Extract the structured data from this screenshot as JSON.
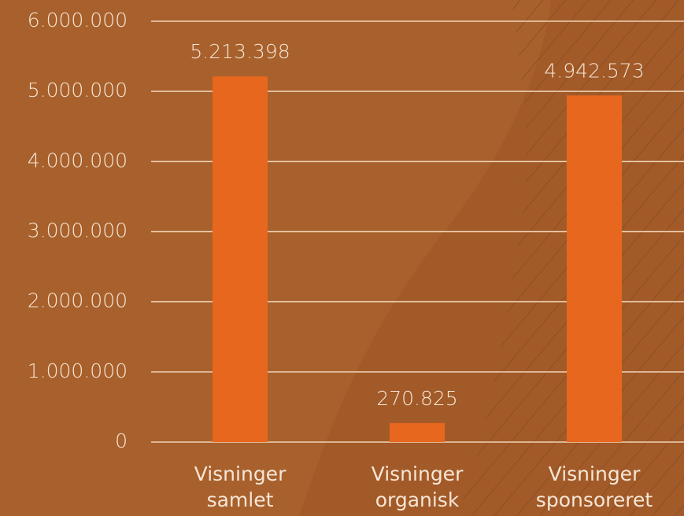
{
  "chart_data": {
    "type": "bar",
    "categories": [
      "Visninger samlet",
      "Visninger organisk",
      "Visninger sponsoreret"
    ],
    "values": [
      5213398,
      270825,
      4942573
    ],
    "value_labels": [
      "5.213.398",
      "270.825",
      "4.942.573"
    ],
    "color": "#e8671e",
    "ylim": [
      0,
      6000000
    ],
    "yticks": [
      0,
      {
        "value": 1000000,
        "label": "1.000.000"
      },
      {
        "value": 2000000,
        "label": "2.000.000"
      },
      {
        "value": 3000000,
        "label": "3.000.000"
      },
      {
        "value": 4000000,
        "label": "4.000.000"
      },
      {
        "value": 5000000,
        "label": "5.000.000"
      },
      {
        "value": 6000000,
        "label": "6.000.000"
      }
    ],
    "grid": true
  }
}
